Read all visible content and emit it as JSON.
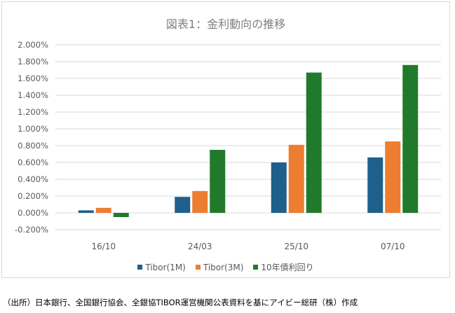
{
  "chart_data": {
    "type": "bar",
    "title": "図表1：金利動向の推移",
    "categories": [
      "16/10",
      "24/03",
      "25/10",
      "07/10"
    ],
    "series": [
      {
        "name": "Tibor(1M)",
        "color": "#1f5f8b",
        "values": [
          0.03,
          0.19,
          0.6,
          0.66
        ]
      },
      {
        "name": "Tibor(3M)",
        "color": "#ed7d31",
        "values": [
          0.06,
          0.26,
          0.81,
          0.85
        ]
      },
      {
        "name": "10年債利回り",
        "color": "#217a2c",
        "values": [
          -0.05,
          0.75,
          1.67,
          1.76
        ]
      }
    ],
    "ylim": [
      -0.2,
      2.0
    ],
    "yticks": [
      "-0.200%",
      "0.000%",
      "0.200%",
      "0.400%",
      "0.600%",
      "0.800%",
      "1.000%",
      "1.200%",
      "1.400%",
      "1.600%",
      "1.800%",
      "2.000%"
    ],
    "grid": true,
    "legend_position": "bottom"
  },
  "source_note": "（出所）日本銀行、全国銀行協会、全銀協TIBOR運営機関公表資料を基にアイビー総研（株）作成"
}
